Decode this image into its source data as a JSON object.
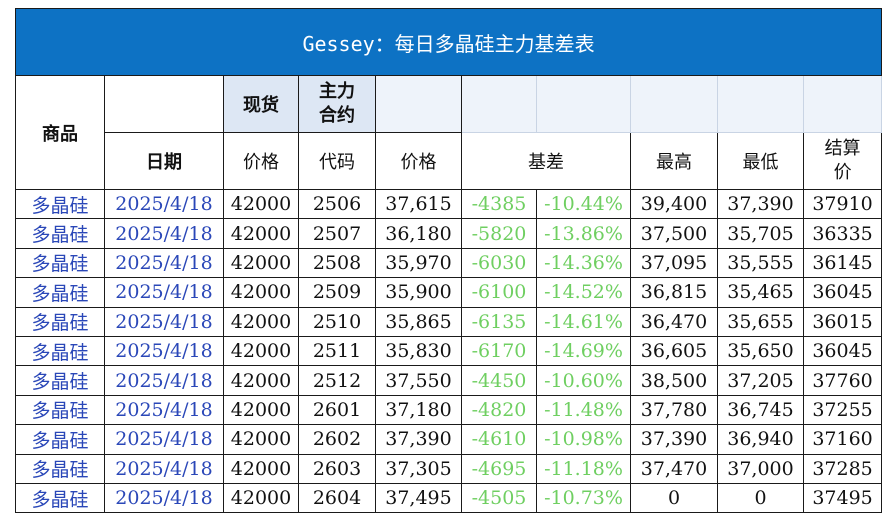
{
  "title": "Gessey：每日多晶硅主力基差表",
  "headers": {
    "product": "商品",
    "date": "日期",
    "spot": "现货",
    "main_contract": "主力\n合约",
    "price": "价格",
    "code": "代码",
    "futures_price": "价格",
    "basis": "基差",
    "high": "最高",
    "low": "最低",
    "settle": "结算\n价"
  },
  "rows": [
    {
      "product": "多晶硅",
      "date": "2025/4/18",
      "spot": "42000",
      "code": "2506",
      "price": "37,615",
      "basis": "-4385",
      "basis_pct": "-10.44%",
      "high": "39,400",
      "low": "37,390",
      "settle": "37910"
    },
    {
      "product": "多晶硅",
      "date": "2025/4/18",
      "spot": "42000",
      "code": "2507",
      "price": "36,180",
      "basis": "-5820",
      "basis_pct": "-13.86%",
      "high": "37,500",
      "low": "35,705",
      "settle": "36335"
    },
    {
      "product": "多晶硅",
      "date": "2025/4/18",
      "spot": "42000",
      "code": "2508",
      "price": "35,970",
      "basis": "-6030",
      "basis_pct": "-14.36%",
      "high": "37,095",
      "low": "35,555",
      "settle": "36145"
    },
    {
      "product": "多晶硅",
      "date": "2025/4/18",
      "spot": "42000",
      "code": "2509",
      "price": "35,900",
      "basis": "-6100",
      "basis_pct": "-14.52%",
      "high": "36,815",
      "low": "35,465",
      "settle": "36045"
    },
    {
      "product": "多晶硅",
      "date": "2025/4/18",
      "spot": "42000",
      "code": "2510",
      "price": "35,865",
      "basis": "-6135",
      "basis_pct": "-14.61%",
      "high": "36,470",
      "low": "35,655",
      "settle": "36015"
    },
    {
      "product": "多晶硅",
      "date": "2025/4/18",
      "spot": "42000",
      "code": "2511",
      "price": "35,830",
      "basis": "-6170",
      "basis_pct": "-14.69%",
      "high": "36,605",
      "low": "35,650",
      "settle": "36045"
    },
    {
      "product": "多晶硅",
      "date": "2025/4/18",
      "spot": "42000",
      "code": "2512",
      "price": "37,550",
      "basis": "-4450",
      "basis_pct": "-10.60%",
      "high": "38,500",
      "low": "37,205",
      "settle": "37760"
    },
    {
      "product": "多晶硅",
      "date": "2025/4/18",
      "spot": "42000",
      "code": "2601",
      "price": "37,180",
      "basis": "-4820",
      "basis_pct": "-11.48%",
      "high": "37,780",
      "low": "36,745",
      "settle": "37255"
    },
    {
      "product": "多晶硅",
      "date": "2025/4/18",
      "spot": "42000",
      "code": "2602",
      "price": "37,390",
      "basis": "-4610",
      "basis_pct": "-10.98%",
      "high": "37,390",
      "low": "36,940",
      "settle": "37160"
    },
    {
      "product": "多晶硅",
      "date": "2025/4/18",
      "spot": "42000",
      "code": "2603",
      "price": "37,305",
      "basis": "-4695",
      "basis_pct": "-11.18%",
      "high": "37,470",
      "low": "37,000",
      "settle": "37285"
    },
    {
      "product": "多晶硅",
      "date": "2025/4/18",
      "spot": "42000",
      "code": "2604",
      "price": "37,495",
      "basis": "-4505",
      "basis_pct": "-10.73%",
      "high": "0",
      "low": "0",
      "settle": "37495"
    }
  ],
  "colors": {
    "title_bg": "#0d72c4",
    "header_shade": "#dde7f4",
    "link_blue": "#2a47b8",
    "basis_green": "#6fcf61"
  }
}
